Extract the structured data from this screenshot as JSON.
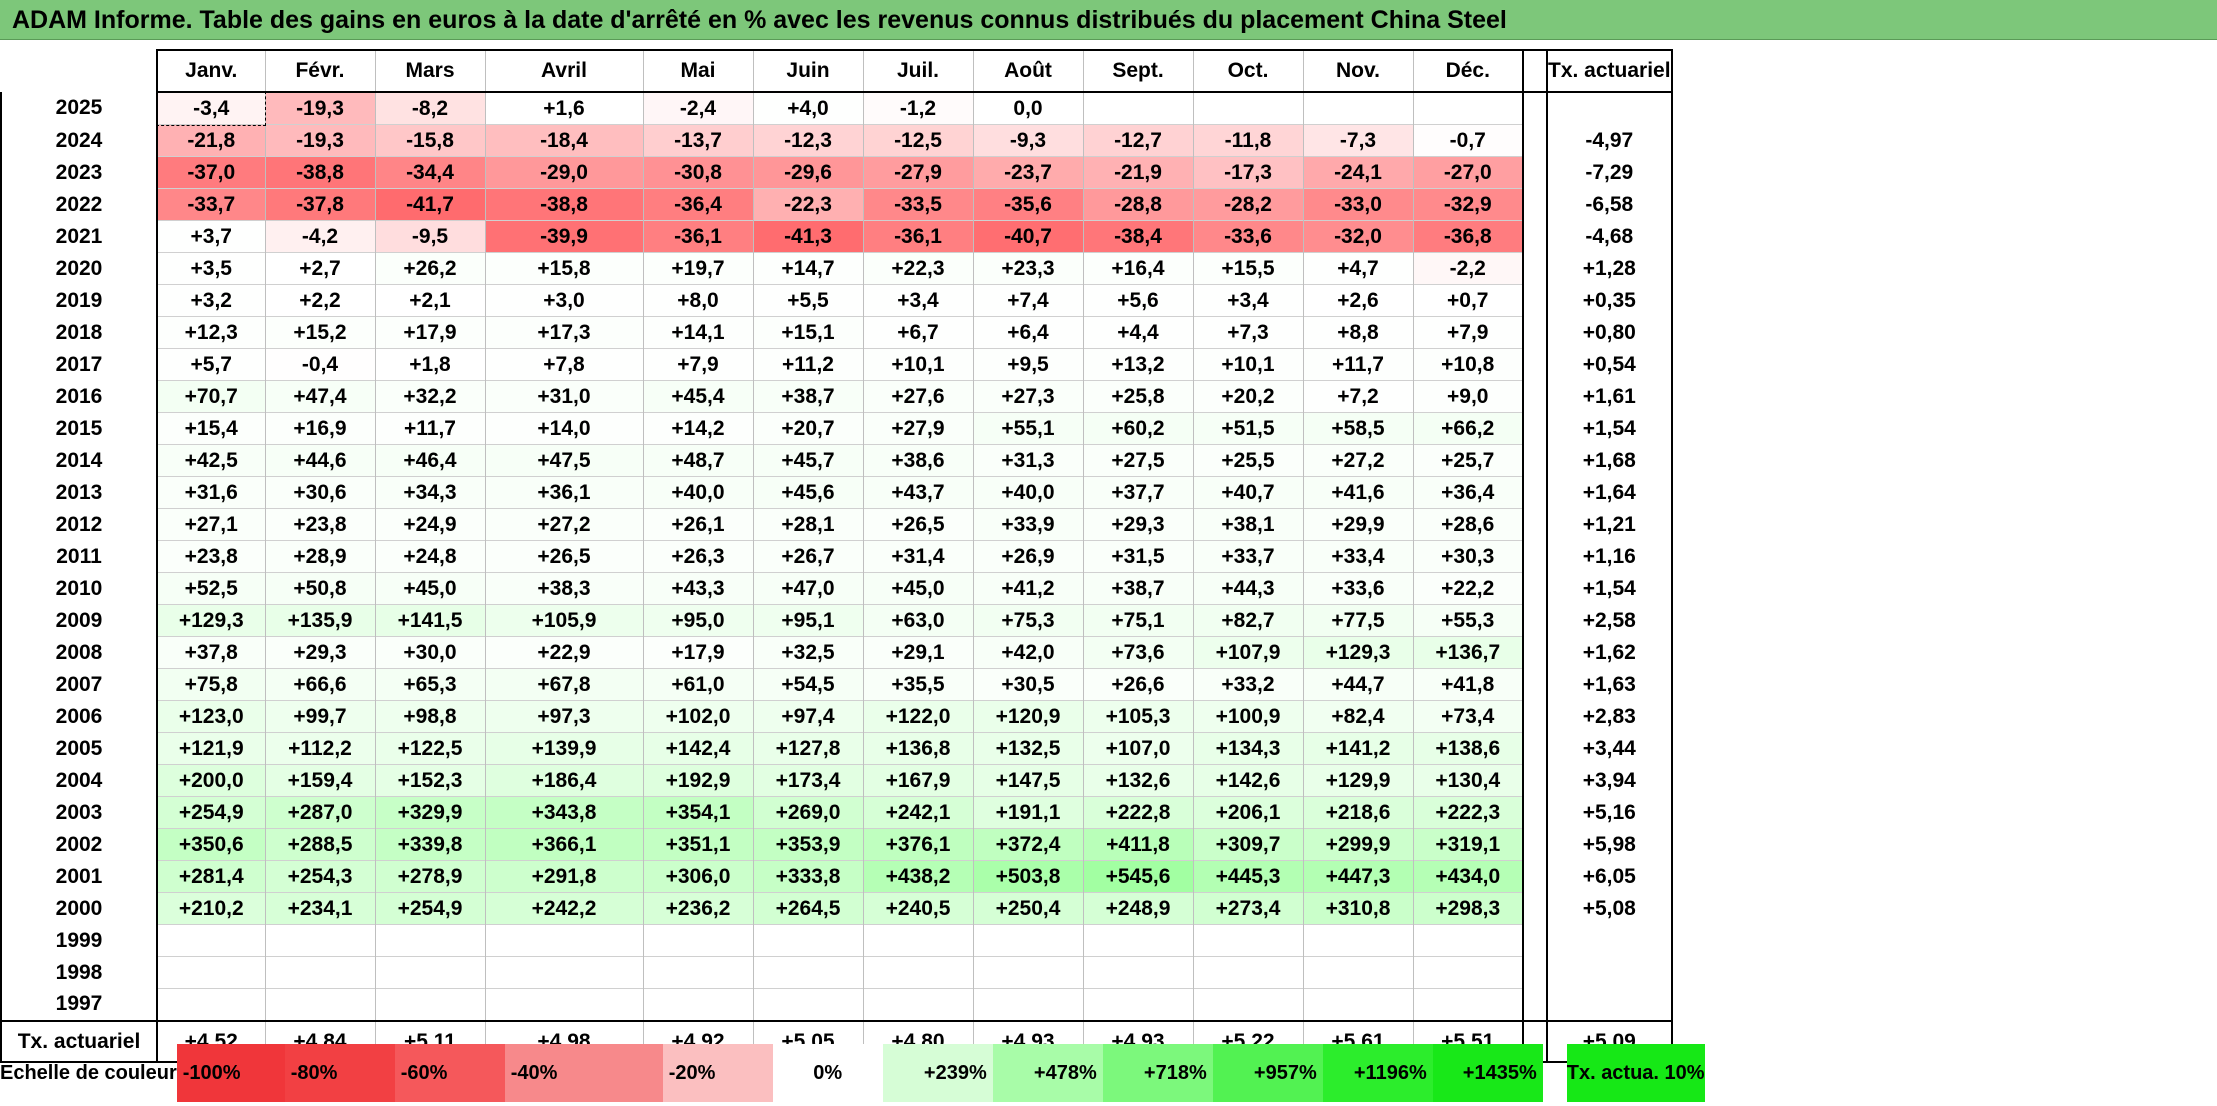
{
  "title": "ADAM Informe. Table des gains en euros à la date d'arrêté en % avec les revenus connus distribués du placement China Steel",
  "months": [
    "Janv.",
    "Févr.",
    "Mars",
    "Avril",
    "Mai",
    "Juin",
    "Juil.",
    "Août",
    "Sept.",
    "Oct.",
    "Nov.",
    "Déc."
  ],
  "annual_header": "Tx. actuariel",
  "rows": [
    {
      "year": "2025",
      "values": [
        "-3,4",
        "-19,3",
        "-8,2",
        "+1,6",
        "-2,4",
        "+4,0",
        "-1,2",
        "0,0",
        "",
        "",
        "",
        ""
      ],
      "annual": ""
    },
    {
      "year": "2024",
      "values": [
        "-21,8",
        "-19,3",
        "-15,8",
        "-18,4",
        "-13,7",
        "-12,3",
        "-12,5",
        "-9,3",
        "-12,7",
        "-11,8",
        "-7,3",
        "-0,7"
      ],
      "annual": "-4,97"
    },
    {
      "year": "2023",
      "values": [
        "-37,0",
        "-38,8",
        "-34,4",
        "-29,0",
        "-30,8",
        "-29,6",
        "-27,9",
        "-23,7",
        "-21,9",
        "-17,3",
        "-24,1",
        "-27,0"
      ],
      "annual": "-7,29"
    },
    {
      "year": "2022",
      "values": [
        "-33,7",
        "-37,8",
        "-41,7",
        "-38,8",
        "-36,4",
        "-22,3",
        "-33,5",
        "-35,6",
        "-28,8",
        "-28,2",
        "-33,0",
        "-32,9"
      ],
      "annual": "-6,58"
    },
    {
      "year": "2021",
      "values": [
        "+3,7",
        "-4,2",
        "-9,5",
        "-39,9",
        "-36,1",
        "-41,3",
        "-36,1",
        "-40,7",
        "-38,4",
        "-33,6",
        "-32,0",
        "-36,8"
      ],
      "annual": "-4,68"
    },
    {
      "year": "2020",
      "values": [
        "+3,5",
        "+2,7",
        "+26,2",
        "+15,8",
        "+19,7",
        "+14,7",
        "+22,3",
        "+23,3",
        "+16,4",
        "+15,5",
        "+4,7",
        "-2,2"
      ],
      "annual": "+1,28"
    },
    {
      "year": "2019",
      "values": [
        "+3,2",
        "+2,2",
        "+2,1",
        "+3,0",
        "+8,0",
        "+5,5",
        "+3,4",
        "+7,4",
        "+5,6",
        "+3,4",
        "+2,6",
        "+0,7"
      ],
      "annual": "+0,35"
    },
    {
      "year": "2018",
      "values": [
        "+12,3",
        "+15,2",
        "+17,9",
        "+17,3",
        "+14,1",
        "+15,1",
        "+6,7",
        "+6,4",
        "+4,4",
        "+7,3",
        "+8,8",
        "+7,9"
      ],
      "annual": "+0,80"
    },
    {
      "year": "2017",
      "values": [
        "+5,7",
        "-0,4",
        "+1,8",
        "+7,8",
        "+7,9",
        "+11,2",
        "+10,1",
        "+9,5",
        "+13,2",
        "+10,1",
        "+11,7",
        "+10,8"
      ],
      "annual": "+0,54"
    },
    {
      "year": "2016",
      "values": [
        "+70,7",
        "+47,4",
        "+32,2",
        "+31,0",
        "+45,4",
        "+38,7",
        "+27,6",
        "+27,3",
        "+25,8",
        "+20,2",
        "+7,2",
        "+9,0"
      ],
      "annual": "+1,61"
    },
    {
      "year": "2015",
      "values": [
        "+15,4",
        "+16,9",
        "+11,7",
        "+14,0",
        "+14,2",
        "+20,7",
        "+27,9",
        "+55,1",
        "+60,2",
        "+51,5",
        "+58,5",
        "+66,2"
      ],
      "annual": "+1,54"
    },
    {
      "year": "2014",
      "values": [
        "+42,5",
        "+44,6",
        "+46,4",
        "+47,5",
        "+48,7",
        "+45,7",
        "+38,6",
        "+31,3",
        "+27,5",
        "+25,5",
        "+27,2",
        "+25,7"
      ],
      "annual": "+1,68"
    },
    {
      "year": "2013",
      "values": [
        "+31,6",
        "+30,6",
        "+34,3",
        "+36,1",
        "+40,0",
        "+45,6",
        "+43,7",
        "+40,0",
        "+37,7",
        "+40,7",
        "+41,6",
        "+36,4"
      ],
      "annual": "+1,64"
    },
    {
      "year": "2012",
      "values": [
        "+27,1",
        "+23,8",
        "+24,9",
        "+27,2",
        "+26,1",
        "+28,1",
        "+26,5",
        "+33,9",
        "+29,3",
        "+38,1",
        "+29,9",
        "+28,6"
      ],
      "annual": "+1,21"
    },
    {
      "year": "2011",
      "values": [
        "+23,8",
        "+28,9",
        "+24,8",
        "+26,5",
        "+26,3",
        "+26,7",
        "+31,4",
        "+26,9",
        "+31,5",
        "+33,7",
        "+33,4",
        "+30,3"
      ],
      "annual": "+1,16"
    },
    {
      "year": "2010",
      "values": [
        "+52,5",
        "+50,8",
        "+45,0",
        "+38,3",
        "+43,3",
        "+47,0",
        "+45,0",
        "+41,2",
        "+38,7",
        "+44,3",
        "+33,6",
        "+22,2"
      ],
      "annual": "+1,54"
    },
    {
      "year": "2009",
      "values": [
        "+129,3",
        "+135,9",
        "+141,5",
        "+105,9",
        "+95,0",
        "+95,1",
        "+63,0",
        "+75,3",
        "+75,1",
        "+82,7",
        "+77,5",
        "+55,3"
      ],
      "annual": "+2,58"
    },
    {
      "year": "2008",
      "values": [
        "+37,8",
        "+29,3",
        "+30,0",
        "+22,9",
        "+17,9",
        "+32,5",
        "+29,1",
        "+42,0",
        "+73,6",
        "+107,9",
        "+129,3",
        "+136,7"
      ],
      "annual": "+1,62"
    },
    {
      "year": "2007",
      "values": [
        "+75,8",
        "+66,6",
        "+65,3",
        "+67,8",
        "+61,0",
        "+54,5",
        "+35,5",
        "+30,5",
        "+26,6",
        "+33,2",
        "+44,7",
        "+41,8"
      ],
      "annual": "+1,63"
    },
    {
      "year": "2006",
      "values": [
        "+123,0",
        "+99,7",
        "+98,8",
        "+97,3",
        "+102,0",
        "+97,4",
        "+122,0",
        "+120,9",
        "+105,3",
        "+100,9",
        "+82,4",
        "+73,4"
      ],
      "annual": "+2,83"
    },
    {
      "year": "2005",
      "values": [
        "+121,9",
        "+112,2",
        "+122,5",
        "+139,9",
        "+142,4",
        "+127,8",
        "+136,8",
        "+132,5",
        "+107,0",
        "+134,3",
        "+141,2",
        "+138,6"
      ],
      "annual": "+3,44"
    },
    {
      "year": "2004",
      "values": [
        "+200,0",
        "+159,4",
        "+152,3",
        "+186,4",
        "+192,9",
        "+173,4",
        "+167,9",
        "+147,5",
        "+132,6",
        "+142,6",
        "+129,9",
        "+130,4"
      ],
      "annual": "+3,94"
    },
    {
      "year": "2003",
      "values": [
        "+254,9",
        "+287,0",
        "+329,9",
        "+343,8",
        "+354,1",
        "+269,0",
        "+242,1",
        "+191,1",
        "+222,8",
        "+206,1",
        "+218,6",
        "+222,3"
      ],
      "annual": "+5,16"
    },
    {
      "year": "2002",
      "values": [
        "+350,6",
        "+288,5",
        "+339,8",
        "+366,1",
        "+351,1",
        "+353,9",
        "+376,1",
        "+372,4",
        "+411,8",
        "+309,7",
        "+299,9",
        "+319,1"
      ],
      "annual": "+5,98"
    },
    {
      "year": "2001",
      "values": [
        "+281,4",
        "+254,3",
        "+278,9",
        "+291,8",
        "+306,0",
        "+333,8",
        "+438,2",
        "+503,8",
        "+545,6",
        "+445,3",
        "+447,3",
        "+434,0"
      ],
      "annual": "+6,05"
    },
    {
      "year": "2000",
      "values": [
        "+210,2",
        "+234,1",
        "+254,9",
        "+242,2",
        "+236,2",
        "+264,5",
        "+240,5",
        "+250,4",
        "+248,9",
        "+273,4",
        "+310,8",
        "+298,3"
      ],
      "annual": "+5,08"
    },
    {
      "year": "1999",
      "values": [
        "",
        "",
        "",
        "",
        "",
        "",
        "",
        "",
        "",
        "",
        "",
        ""
      ],
      "annual": ""
    },
    {
      "year": "1998",
      "values": [
        "",
        "",
        "",
        "",
        "",
        "",
        "",
        "",
        "",
        "",
        "",
        ""
      ],
      "annual": ""
    },
    {
      "year": "1997",
      "values": [
        "",
        "",
        "",
        "",
        "",
        "",
        "",
        "",
        "",
        "",
        "",
        ""
      ],
      "annual": ""
    }
  ],
  "footer": {
    "label": "Tx. actuariel",
    "values": [
      "+4,52",
      "+4,84",
      "+5,11",
      "+4,98",
      "+4,92",
      "+5,05",
      "+4,80",
      "+4,93",
      "+4,93",
      "+5,22",
      "+5,61",
      "+5,51"
    ],
    "annual": "+5,09"
  },
  "scale": {
    "label": "Echelle de couleur",
    "steps": [
      {
        "label": "-100%",
        "color": "#f0363a"
      },
      {
        "label": "-80%",
        "color": "#f24043"
      },
      {
        "label": "-60%",
        "color": "#f5585b"
      },
      {
        "label": "-40%",
        "color": "#f7898b"
      },
      {
        "label": "-20%",
        "color": "#fbbfc0"
      },
      {
        "label": "0%",
        "color": "#ffffff"
      },
      {
        "label": "+239%",
        "color": "#d6fdd6"
      },
      {
        "label": "+478%",
        "color": "#a8fca8"
      },
      {
        "label": "+718%",
        "color": "#7cf87c"
      },
      {
        "label": "+957%",
        "color": "#52f252"
      },
      {
        "label": "+1196%",
        "color": "#2ced2c"
      },
      {
        "label": "+1435%",
        "color": "#18e818"
      }
    ],
    "annual_label": "Tx. actua. 10%",
    "annual_color": "#16e816"
  },
  "colors": {
    "title_bg": "#7dc77a"
  }
}
